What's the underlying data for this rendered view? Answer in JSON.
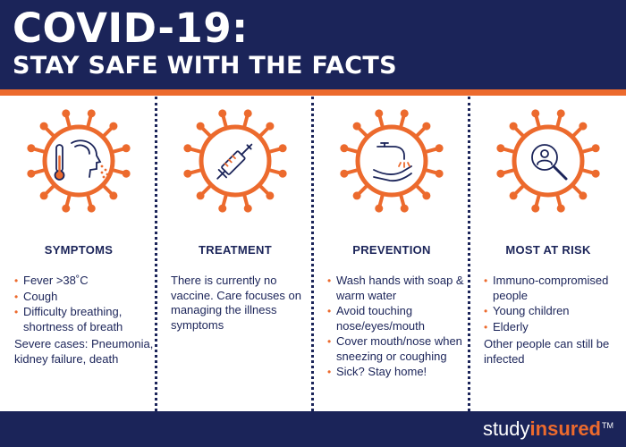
{
  "header": {
    "title": "COVID-19:",
    "subtitle": "STAY SAFE WITH THE FACTS"
  },
  "columns": [
    {
      "id": "symptoms",
      "icon": "thermometer-fever-icon",
      "title": "SYMPTOMS",
      "bullets": [
        "Fever >38˚C",
        "Cough",
        "Difficulty breathing, shortness of breath"
      ],
      "extra": "Severe cases: Pneumonia, kidney failure, death"
    },
    {
      "id": "treatment",
      "icon": "syringe-icon",
      "title": "TREATMENT",
      "paragraph": "There is currently no vaccine. Care focuses on managing the illness symptoms"
    },
    {
      "id": "prevention",
      "icon": "hand-washing-icon",
      "title": "PREVENTION",
      "bullets": [
        "Wash hands with soap & warm water",
        "Avoid touching nose/eyes/mouth",
        "Cover mouth/nose when sneezing or coughing",
        "Sick? Stay home!"
      ]
    },
    {
      "id": "at-risk",
      "icon": "magnifier-person-icon",
      "title": "MOST AT RISK",
      "bullets": [
        "Immuno-compromised people",
        "Young children",
        "Elderly"
      ],
      "extra": "Other people can still be infected"
    }
  ],
  "footer": {
    "brand_part1": "study",
    "brand_part2": "insured",
    "brand_tm": "TM"
  },
  "colors": {
    "navy": "#1b2459",
    "orange": "#ec6a2d",
    "white": "#ffffff"
  }
}
